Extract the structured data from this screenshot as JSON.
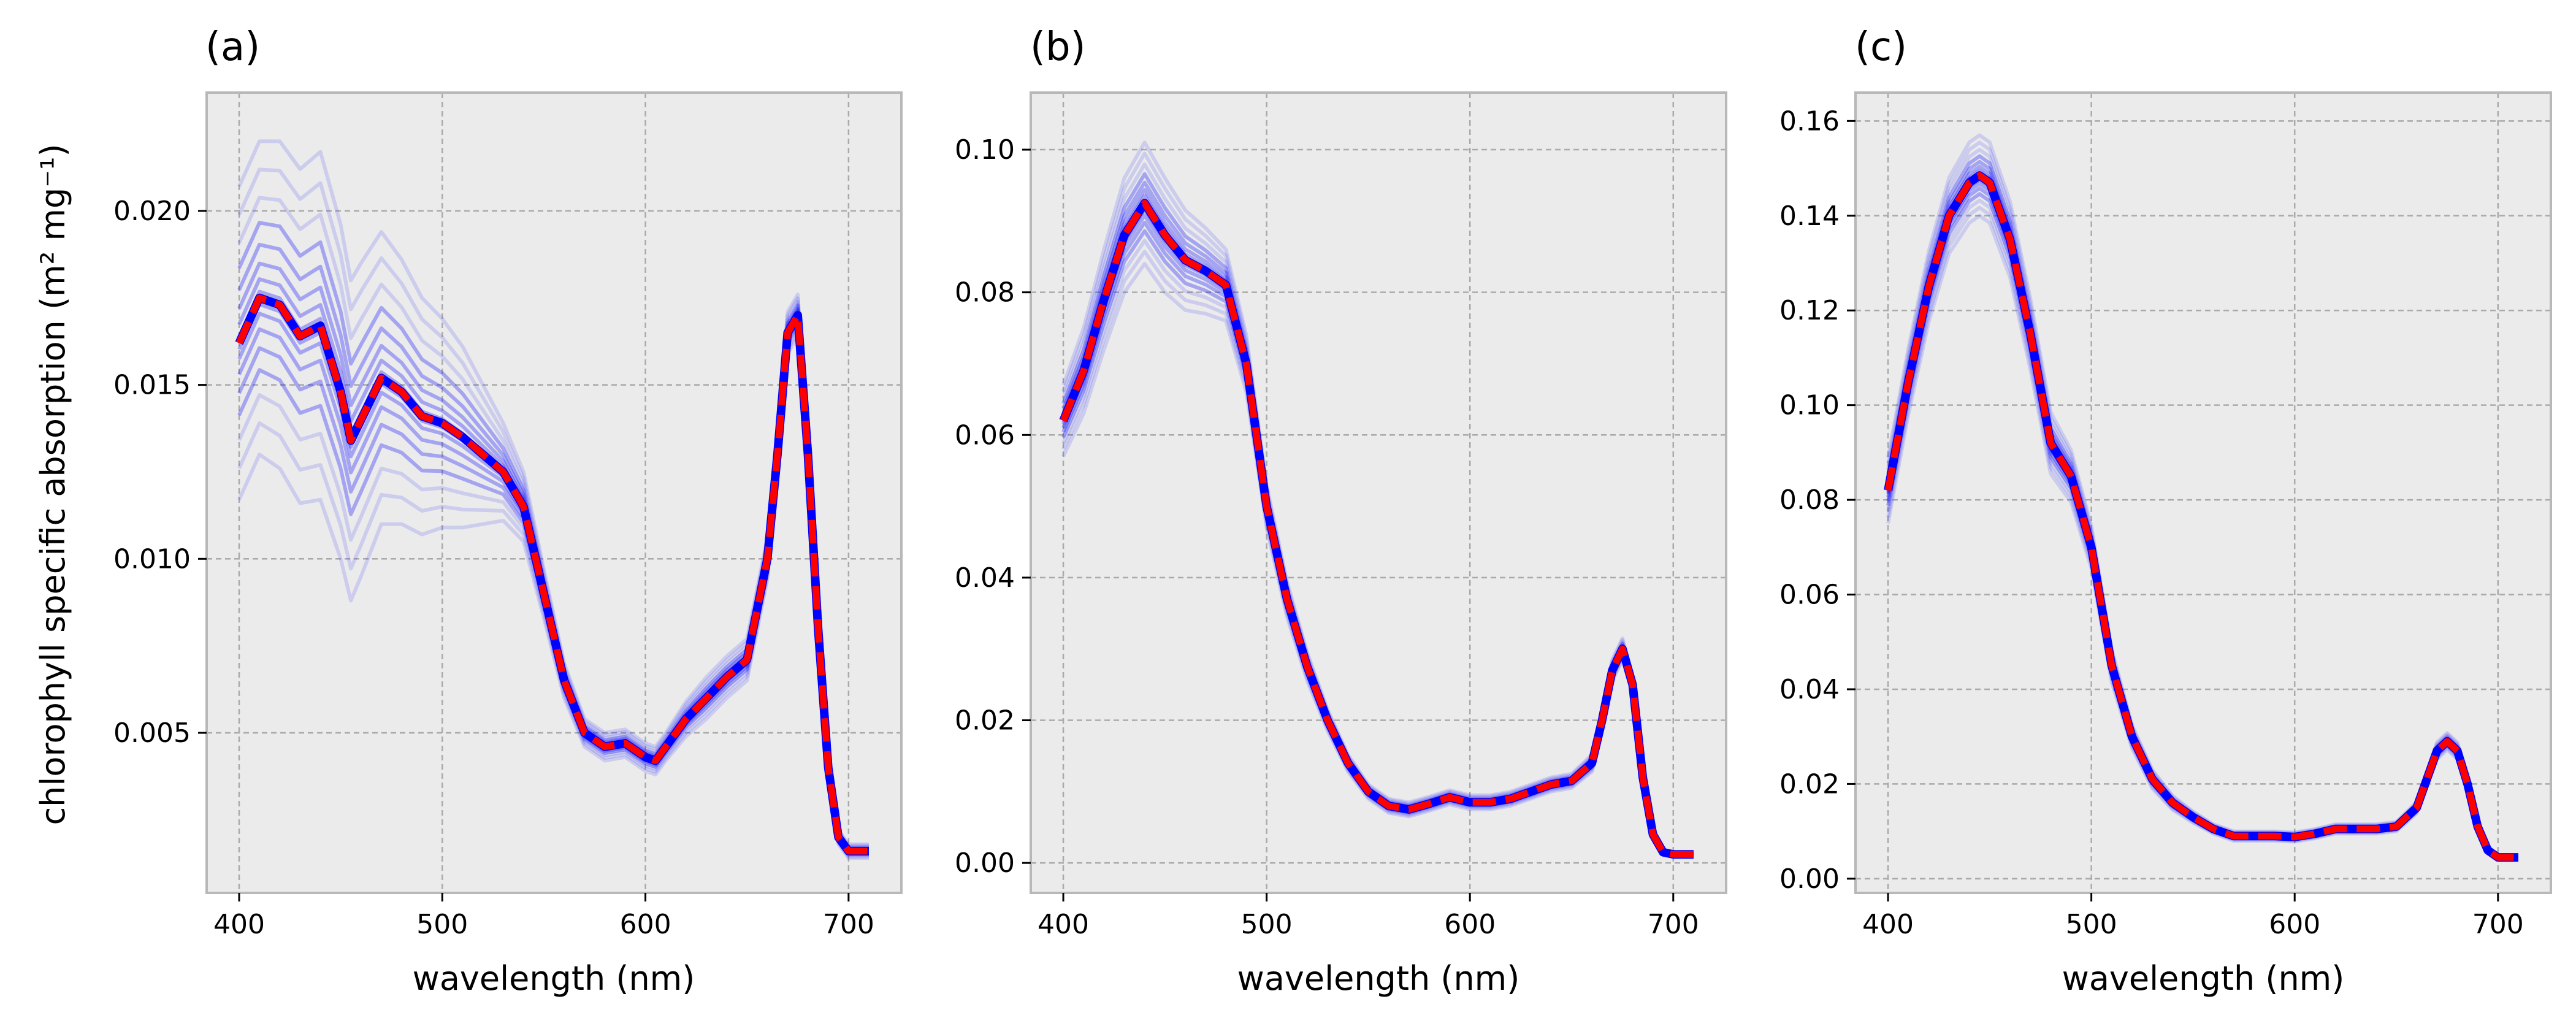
{
  "figure": {
    "ylabel": "chlorophyll specific absorption (m² mg⁻¹)",
    "colors": {
      "background": "#ebebeb",
      "grid": "#aaaaaa",
      "spine": "#b8b8b8",
      "ensemble": "#0000ff",
      "mean": "#ff0000"
    }
  },
  "chart_data": [
    {
      "type": "line",
      "title": "(a)",
      "xlabel": "wavelength (nm)",
      "ylabel": "chlorophyll specific absorption (m² mg⁻¹)",
      "xlim": [
        384,
        726
      ],
      "ylim": [
        0.0004,
        0.0234
      ],
      "xticks": [
        400,
        500,
        600,
        700
      ],
      "yticks": [
        0.005,
        0.01,
        0.015,
        0.02
      ],
      "ytick_labels": [
        "0.005",
        "0.010",
        "0.015",
        "0.020"
      ],
      "grid": true,
      "x": [
        400,
        410,
        420,
        430,
        440,
        450,
        455,
        460,
        470,
        480,
        490,
        500,
        510,
        520,
        530,
        540,
        550,
        560,
        570,
        580,
        590,
        600,
        605,
        610,
        620,
        630,
        640,
        650,
        660,
        665,
        670,
        675,
        680,
        685,
        690,
        695,
        700,
        705,
        710
      ],
      "series": [
        {
          "name": "mean",
          "values": [
            0.0162,
            0.0175,
            0.0173,
            0.0164,
            0.0167,
            0.0148,
            0.0134,
            0.014,
            0.0152,
            0.0148,
            0.0141,
            0.0139,
            0.0135,
            0.013,
            0.0125,
            0.0115,
            0.009,
            0.0065,
            0.005,
            0.0046,
            0.0047,
            0.0043,
            0.0042,
            0.0046,
            0.0054,
            0.006,
            0.0066,
            0.0071,
            0.01,
            0.013,
            0.0165,
            0.017,
            0.013,
            0.008,
            0.004,
            0.002,
            0.0016,
            0.0016,
            0.0016
          ]
        },
        {
          "name": "spread",
          "values": [
            0.0045,
            0.0045,
            0.0047,
            0.0048,
            0.005,
            0.0048,
            0.0046,
            0.0045,
            0.0042,
            0.0038,
            0.0034,
            0.003,
            0.0026,
            0.002,
            0.0014,
            0.001,
            0.0007,
            0.0005,
            0.0004,
            0.0004,
            0.0004,
            0.0004,
            0.0004,
            0.0004,
            0.0005,
            0.0006,
            0.0006,
            0.0006,
            0.0006,
            0.0006,
            0.0006,
            0.0006,
            0.0005,
            0.0004,
            0.0003,
            0.0002,
            0.0002,
            0.0002,
            0.0002
          ]
        }
      ]
    },
    {
      "type": "line",
      "title": "(b)",
      "xlabel": "wavelength (nm)",
      "xlim": [
        384,
        726
      ],
      "ylim": [
        -0.0042,
        0.108
      ],
      "xticks": [
        400,
        500,
        600,
        700
      ],
      "yticks": [
        0.0,
        0.02,
        0.04,
        0.06,
        0.08,
        0.1
      ],
      "ytick_labels": [
        "0.00",
        "0.02",
        "0.04",
        "0.06",
        "0.08",
        "0.10"
      ],
      "grid": true,
      "x": [
        400,
        410,
        420,
        430,
        440,
        450,
        460,
        470,
        480,
        490,
        500,
        510,
        520,
        530,
        540,
        550,
        560,
        570,
        580,
        590,
        600,
        610,
        620,
        630,
        640,
        650,
        660,
        665,
        670,
        675,
        680,
        685,
        690,
        695,
        700,
        705,
        710
      ],
      "series": [
        {
          "name": "mean",
          "values": [
            0.062,
            0.069,
            0.079,
            0.088,
            0.0925,
            0.088,
            0.0845,
            0.083,
            0.081,
            0.07,
            0.05,
            0.037,
            0.0275,
            0.02,
            0.014,
            0.01,
            0.008,
            0.0075,
            0.0083,
            0.0092,
            0.0085,
            0.0085,
            0.009,
            0.01,
            0.011,
            0.0115,
            0.014,
            0.02,
            0.027,
            0.03,
            0.025,
            0.012,
            0.004,
            0.0015,
            0.0012,
            0.0012,
            0.0012
          ]
        },
        {
          "name": "spread",
          "values": [
            0.005,
            0.006,
            0.007,
            0.008,
            0.0085,
            0.008,
            0.007,
            0.006,
            0.005,
            0.004,
            0.003,
            0.0025,
            0.002,
            0.0015,
            0.0012,
            0.001,
            0.001,
            0.001,
            0.001,
            0.001,
            0.001,
            0.001,
            0.001,
            0.001,
            0.001,
            0.001,
            0.0012,
            0.0015,
            0.0015,
            0.0015,
            0.0012,
            0.0008,
            0.0005,
            0.0004,
            0.0003,
            0.0003,
            0.0003
          ]
        }
      ]
    },
    {
      "type": "line",
      "title": "(c)",
      "xlabel": "wavelength (nm)",
      "xlim": [
        384,
        726
      ],
      "ylim": [
        -0.003,
        0.166
      ],
      "xticks": [
        400,
        500,
        600,
        700
      ],
      "yticks": [
        0.0,
        0.02,
        0.04,
        0.06,
        0.08,
        0.1,
        0.12,
        0.14,
        0.16
      ],
      "ytick_labels": [
        "0.00",
        "0.02",
        "0.04",
        "0.06",
        "0.08",
        "0.10",
        "0.12",
        "0.14",
        "0.16"
      ],
      "grid": true,
      "x": [
        400,
        410,
        420,
        430,
        440,
        445,
        450,
        460,
        470,
        480,
        490,
        500,
        510,
        520,
        530,
        540,
        550,
        560,
        570,
        580,
        590,
        600,
        610,
        620,
        630,
        640,
        650,
        660,
        665,
        670,
        675,
        680,
        685,
        690,
        695,
        700,
        705,
        710
      ],
      "series": [
        {
          "name": "mean",
          "values": [
            0.082,
            0.105,
            0.125,
            0.14,
            0.147,
            0.1485,
            0.147,
            0.135,
            0.115,
            0.092,
            0.085,
            0.07,
            0.045,
            0.03,
            0.021,
            0.016,
            0.013,
            0.0105,
            0.009,
            0.009,
            0.009,
            0.0088,
            0.0095,
            0.0105,
            0.0105,
            0.0105,
            0.011,
            0.015,
            0.021,
            0.027,
            0.029,
            0.027,
            0.02,
            0.011,
            0.006,
            0.0045,
            0.0045,
            0.0045
          ]
        },
        {
          "name": "spread",
          "values": [
            0.007,
            0.007,
            0.0075,
            0.008,
            0.0085,
            0.0085,
            0.0085,
            0.008,
            0.0075,
            0.0065,
            0.0055,
            0.0045,
            0.0035,
            0.0025,
            0.002,
            0.0015,
            0.0012,
            0.001,
            0.001,
            0.001,
            0.001,
            0.001,
            0.001,
            0.001,
            0.001,
            0.001,
            0.001,
            0.0012,
            0.0015,
            0.0018,
            0.0018,
            0.0018,
            0.0015,
            0.001,
            0.0007,
            0.0005,
            0.0005,
            0.0005
          ]
        }
      ]
    }
  ]
}
